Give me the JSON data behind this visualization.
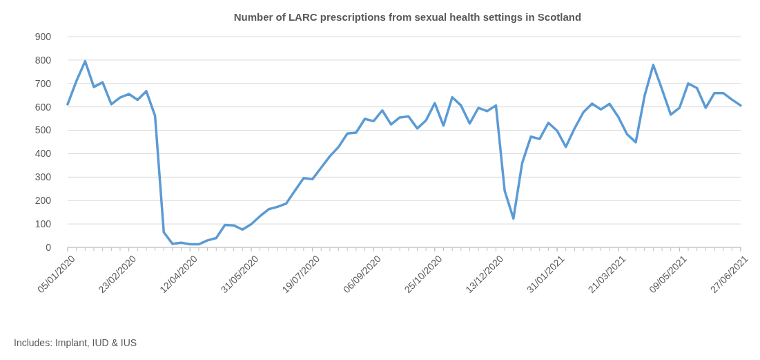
{
  "chart_data": {
    "type": "line",
    "title": "Number of LARC prescriptions from sexual health settings in Scotland",
    "x": [
      "2020-01-05",
      "2020-01-12",
      "2020-01-19",
      "2020-01-26",
      "2020-02-02",
      "2020-02-09",
      "2020-02-16",
      "2020-02-23",
      "2020-03-01",
      "2020-03-08",
      "2020-03-15",
      "2020-03-22",
      "2020-03-29",
      "2020-04-05",
      "2020-04-12",
      "2020-04-19",
      "2020-04-26",
      "2020-05-03",
      "2020-05-10",
      "2020-05-17",
      "2020-05-24",
      "2020-05-31",
      "2020-06-07",
      "2020-06-14",
      "2020-06-21",
      "2020-06-28",
      "2020-07-05",
      "2020-07-12",
      "2020-07-19",
      "2020-07-26",
      "2020-08-02",
      "2020-08-09",
      "2020-08-16",
      "2020-08-23",
      "2020-08-30",
      "2020-09-06",
      "2020-09-13",
      "2020-09-20",
      "2020-09-27",
      "2020-10-04",
      "2020-10-11",
      "2020-10-18",
      "2020-10-25",
      "2020-11-01",
      "2020-11-08",
      "2020-11-15",
      "2020-11-22",
      "2020-11-29",
      "2020-12-06",
      "2020-12-13",
      "2020-12-20",
      "2020-12-27",
      "2021-01-03",
      "2021-01-10",
      "2021-01-17",
      "2021-01-24",
      "2021-01-31",
      "2021-02-07",
      "2021-02-14",
      "2021-02-21",
      "2021-02-28",
      "2021-03-07",
      "2021-03-14",
      "2021-03-21",
      "2021-03-28",
      "2021-04-04",
      "2021-04-11",
      "2021-04-18",
      "2021-04-25",
      "2021-05-02",
      "2021-05-09",
      "2021-05-16",
      "2021-05-23",
      "2021-05-30",
      "2021-06-06",
      "2021-06-13",
      "2021-06-20",
      "2021-06-27"
    ],
    "series": [
      {
        "color": "#5b9bd5",
        "values": [
          611,
          710,
          795,
          685,
          705,
          611,
          640,
          655,
          630,
          667,
          562,
          64,
          15,
          20,
          13,
          13,
          30,
          40,
          96,
          94,
          76,
          99,
          133,
          163,
          173,
          187,
          242,
          296,
          291,
          340,
          389,
          429,
          486,
          490,
          549,
          539,
          585,
          525,
          555,
          559,
          508,
          542,
          616,
          520,
          641,
          606,
          529,
          596,
          582,
          606,
          242,
          123,
          360,
          473,
          463,
          532,
          498,
          429,
          508,
          577,
          614,
          589,
          613,
          557,
          483,
          449,
          646,
          779,
          675,
          567,
          596,
          700,
          680,
          596,
          659,
          659,
          631,
          606
        ]
      }
    ],
    "xlim": [
      "2020-01-05",
      "2021-06-27"
    ],
    "xticks": [
      {
        "value": "2020-01-05",
        "label": "05/01/2020"
      },
      {
        "value": "2020-02-23",
        "label": "23/02/2020"
      },
      {
        "value": "2020-04-12",
        "label": "12/04/2020"
      },
      {
        "value": "2020-05-31",
        "label": "31/05/2020"
      },
      {
        "value": "2020-07-19",
        "label": "19/07/2020"
      },
      {
        "value": "2020-09-06",
        "label": "06/09/2020"
      },
      {
        "value": "2020-10-25",
        "label": "25/10/2020"
      },
      {
        "value": "2020-12-13",
        "label": "13/12/2020"
      },
      {
        "value": "2021-01-31",
        "label": "31/01/2021"
      },
      {
        "value": "2021-03-21",
        "label": "21/03/2021"
      },
      {
        "value": "2021-05-09",
        "label": "09/05/2021"
      },
      {
        "value": "2021-06-27",
        "label": "27/06/2021"
      }
    ],
    "ylim": [
      0,
      900
    ],
    "yticks": [
      0,
      100,
      200,
      300,
      400,
      500,
      600,
      700,
      800,
      900
    ],
    "grid": "y",
    "marker": "none",
    "line_style": "solid",
    "annotations": [
      "Includes: Implant, IUD & IUS"
    ]
  }
}
